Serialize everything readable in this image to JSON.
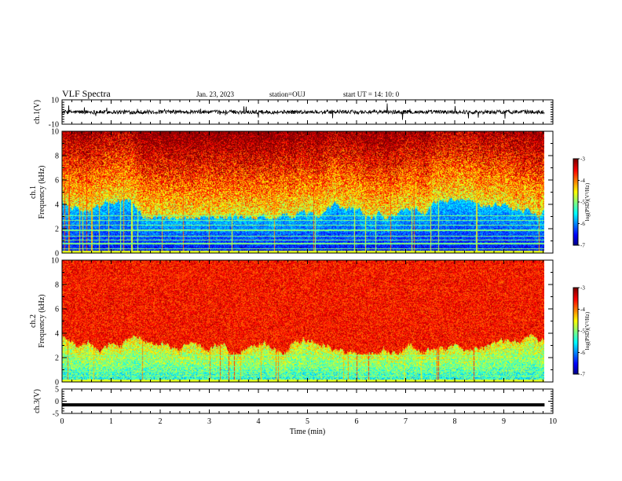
{
  "header": {
    "title": "VLF Spectra",
    "date": "Jan. 23, 2023",
    "station": "station=OUJ",
    "start": "start  UT =   14: 10: 0"
  },
  "chart_data": {
    "type": "heatmap",
    "xlabel": "Time  (min)",
    "xlim": [
      0,
      10
    ],
    "x_ticks": [
      "0",
      "1",
      "2",
      "3",
      "4",
      "5",
      "6",
      "7",
      "8",
      "9",
      "10"
    ],
    "panels": [
      {
        "id": "ch1-waveform",
        "type": "line",
        "ylabel": "ch.1(V)",
        "ylim": [
          -10,
          10
        ],
        "y_ticks": [
          "10",
          "-10"
        ],
        "data_end_min": 9.83
      },
      {
        "id": "ch1-spectrogram",
        "type": "heatmap",
        "ylabel": "ch.1\nFrequency (kHz)",
        "ylim": [
          0,
          10
        ],
        "y_ticks": [
          "0",
          "2",
          "4",
          "6",
          "8",
          "10"
        ],
        "data_end_min": 9.83,
        "colorbar": {
          "label": "log(PSD)(V²/Hz)",
          "range": [
            -7,
            -3
          ],
          "ticks": [
            "-3",
            "-4",
            "-5",
            "-6",
            "-7"
          ]
        }
      },
      {
        "id": "ch2-spectrogram",
        "type": "heatmap",
        "ylabel": "ch.2\nFrequency (kHz)",
        "ylim": [
          0,
          10
        ],
        "y_ticks": [
          "0",
          "2",
          "4",
          "6",
          "8",
          "10"
        ],
        "data_end_min": 9.83,
        "colorbar": {
          "label": "log(PSD)(V²/Hz)",
          "range": [
            -7,
            -3
          ],
          "ticks": [
            "-3",
            "-4",
            "-5",
            "-6",
            "-7"
          ]
        }
      },
      {
        "id": "ch3-waveform",
        "type": "line",
        "ylabel": "ch.3(V)",
        "ylim": [
          -5,
          5
        ],
        "y_ticks": [
          "5",
          "0",
          "-5"
        ],
        "level": -1.5,
        "data_end_min": 9.83
      }
    ]
  }
}
